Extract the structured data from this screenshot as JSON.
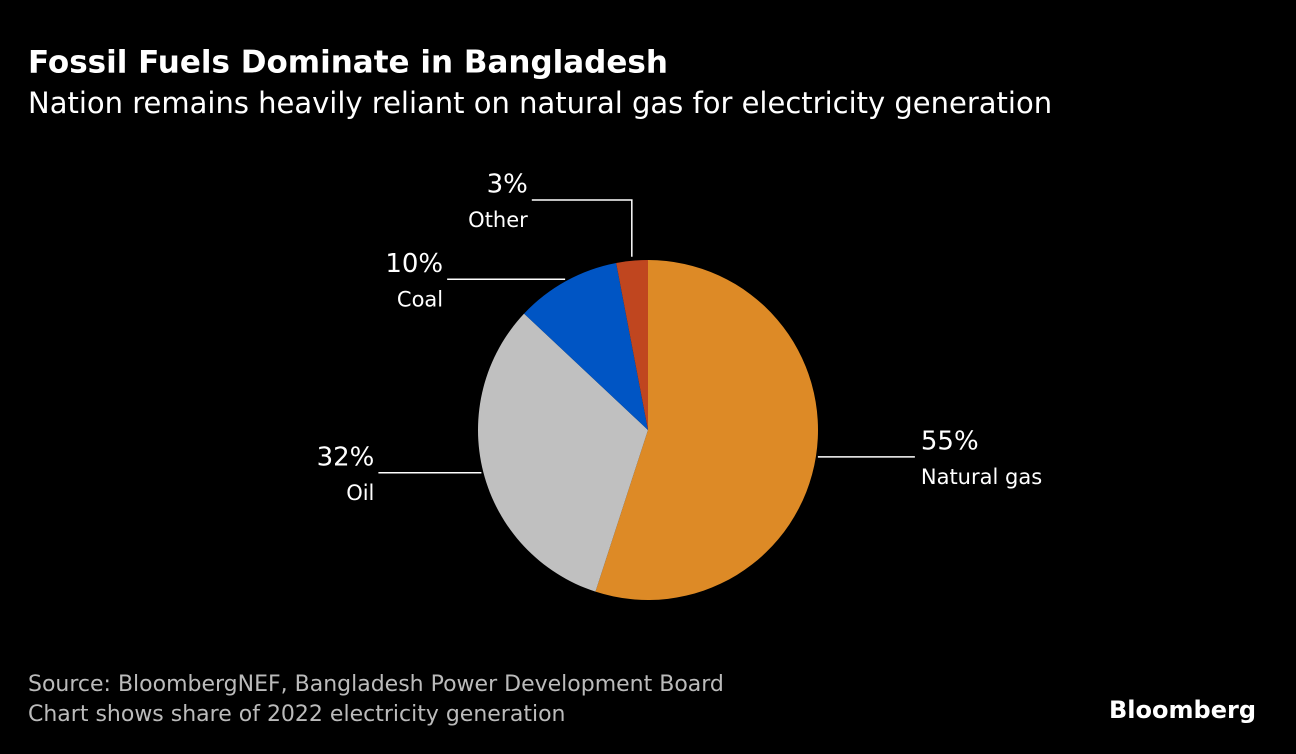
{
  "chart_data": {
    "type": "pie",
    "title": "Fossil Fuels Dominate in Bangladesh",
    "subtitle": "Nation remains heavily reliant on natural gas for electricity generation",
    "categories": [
      "Natural gas",
      "Oil",
      "Coal",
      "Other"
    ],
    "values": [
      55,
      32,
      10,
      3
    ],
    "value_labels": [
      "55%",
      "32%",
      "10%",
      "3%"
    ],
    "colors": [
      "#dd8a26",
      "#c0c0c0",
      "#0055c4",
      "#c0461f"
    ],
    "source": "Source: BloombergNEF, Bangladesh Power Development Board",
    "note": "Chart shows share of 2022 electricity generation",
    "logo": "Bloomberg"
  }
}
